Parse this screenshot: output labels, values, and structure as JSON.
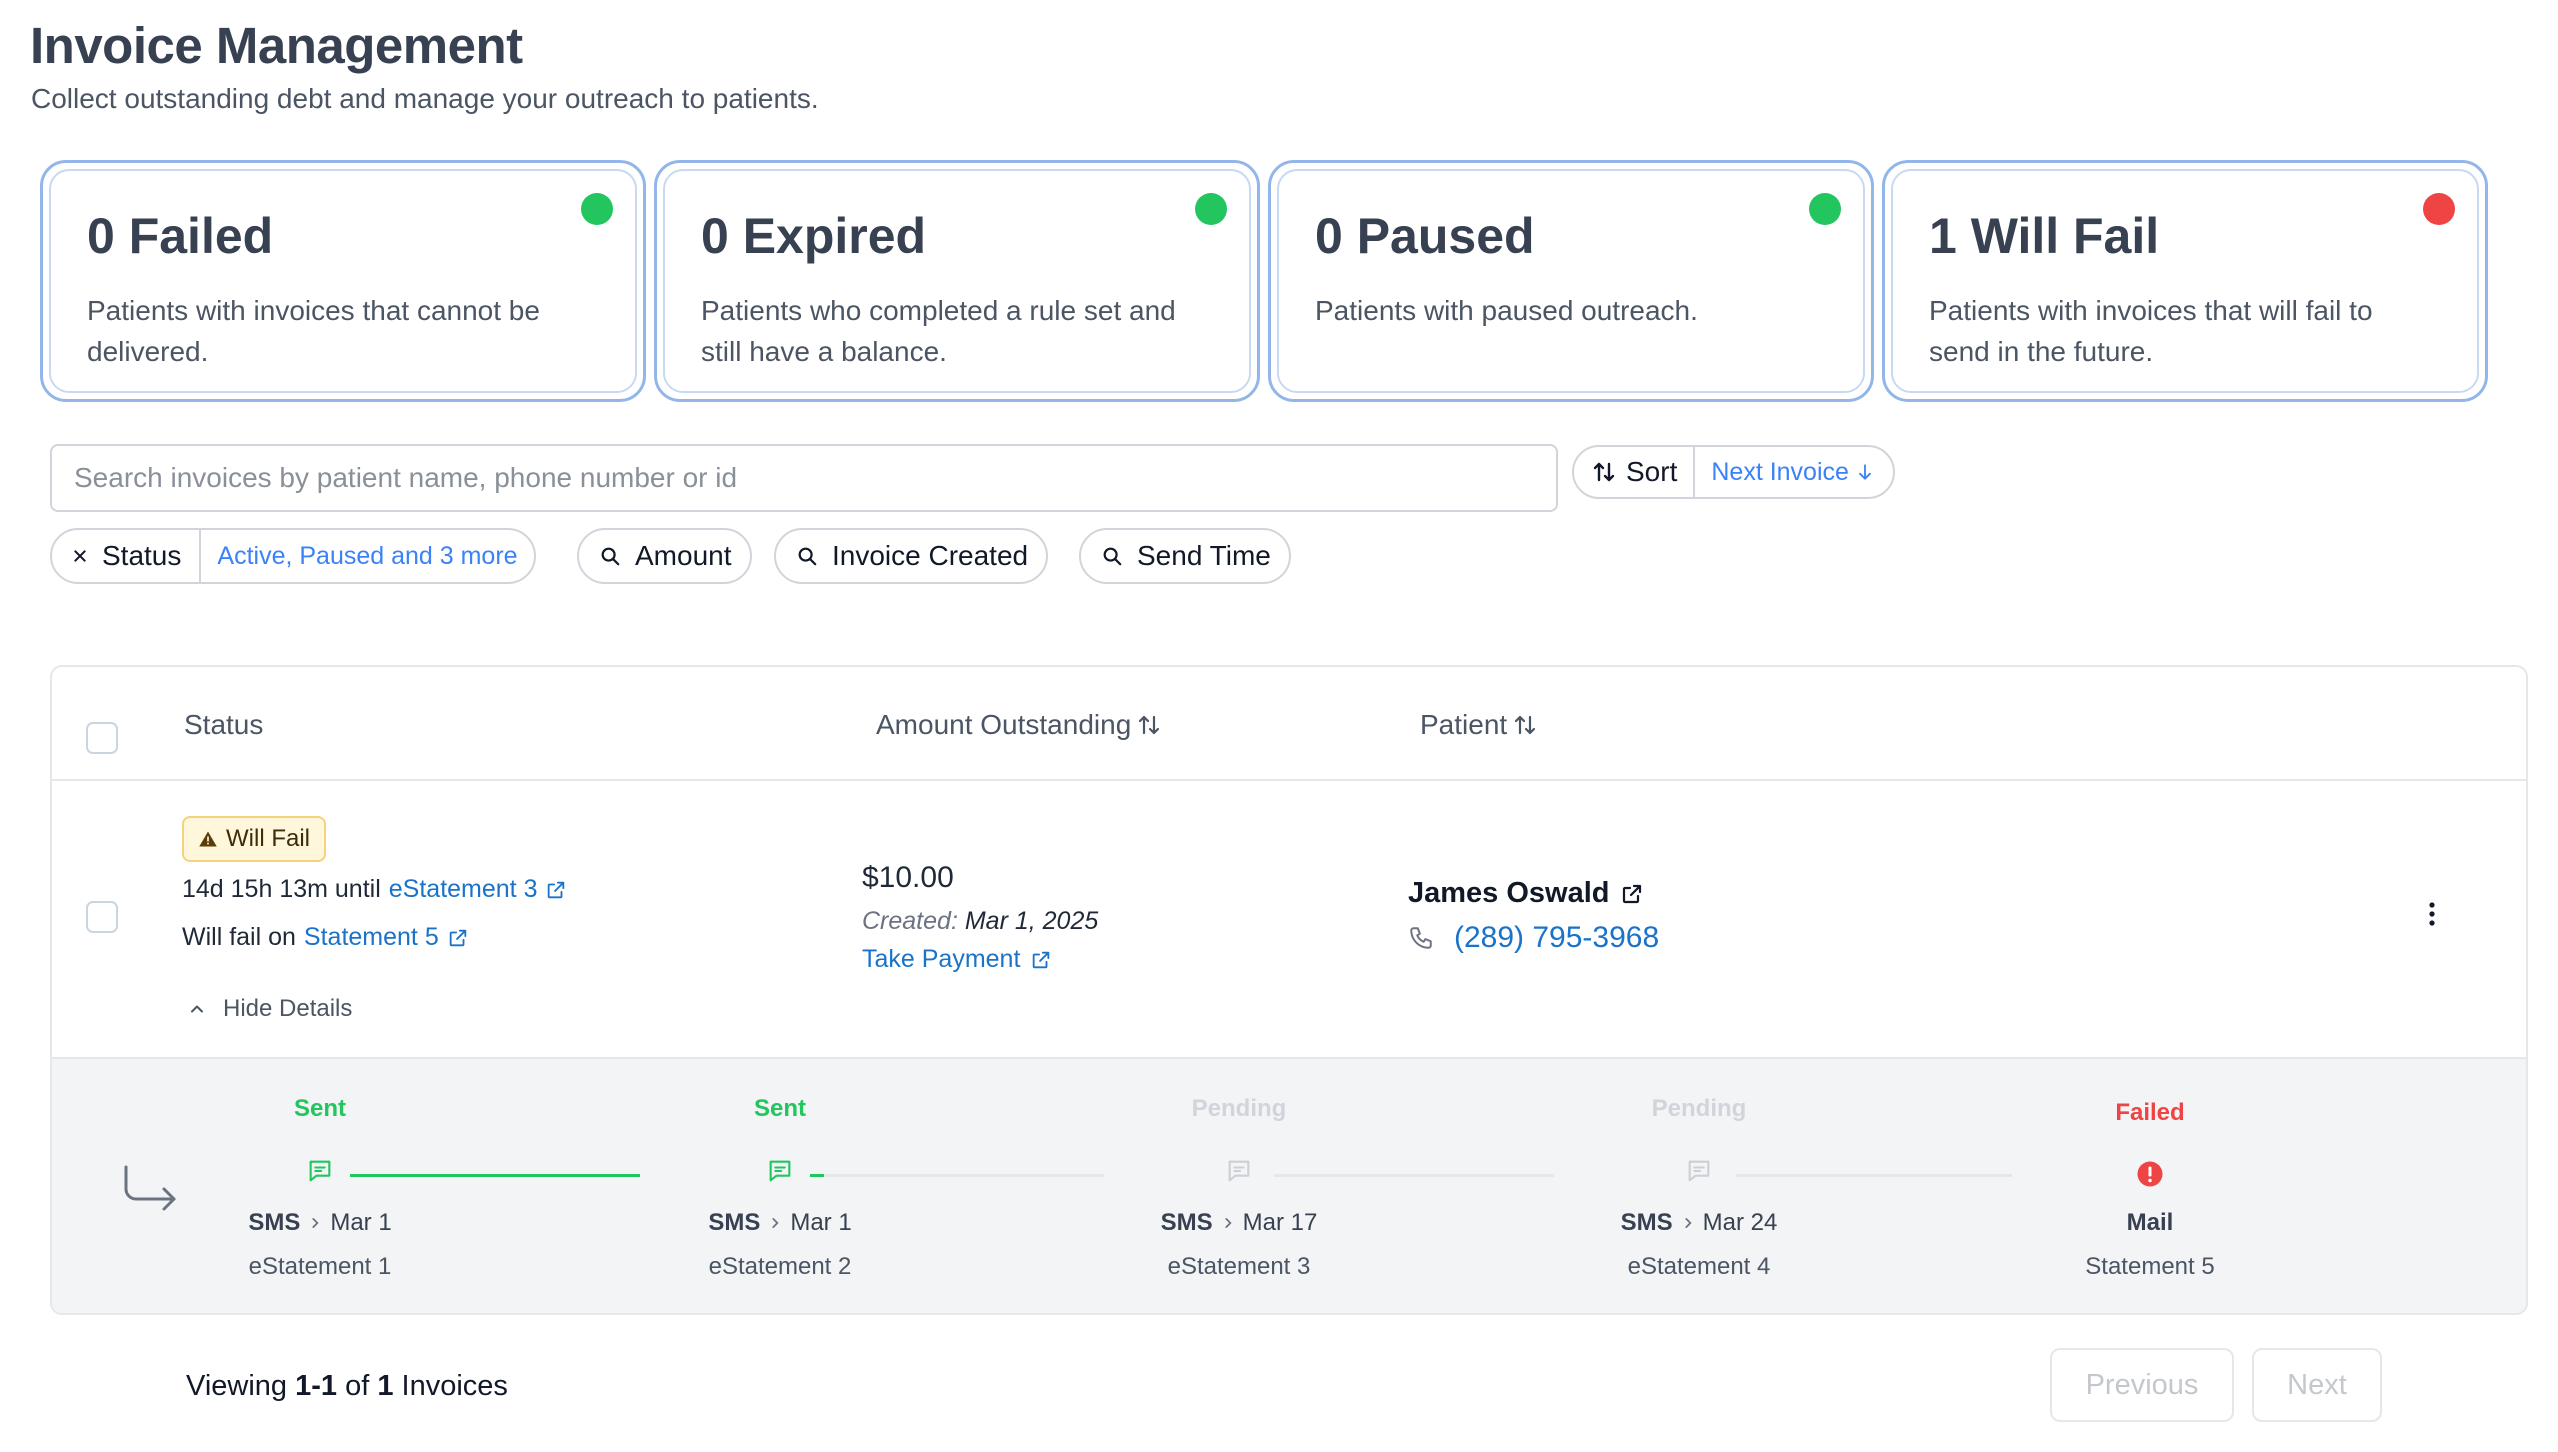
{
  "header": {
    "title": "Invoice Management",
    "subtitle": "Collect outstanding debt and manage your outreach to patients."
  },
  "stats": [
    {
      "title": "0 Failed",
      "description": "Patients with invoices that cannot be delivered.",
      "indicator_color": "#22c55e"
    },
    {
      "title": "0 Expired",
      "description": "Patients who completed a rule set and still have a balance.",
      "indicator_color": "#22c55e"
    },
    {
      "title": "0 Paused",
      "description": "Patients with paused outreach.",
      "indicator_color": "#22c55e"
    },
    {
      "title": "1 Will Fail",
      "description": "Patients with invoices that will fail to send in the future.",
      "indicator_color": "#ef4444"
    }
  ],
  "search": {
    "placeholder": "Search invoices by patient name, phone number or id",
    "value": ""
  },
  "sort": {
    "label": "Sort",
    "value": "Next Invoice",
    "direction_icon": "arrow-down-icon"
  },
  "filters": [
    {
      "label": "Status",
      "value": "Active, Paused and 3 more",
      "icon": "close-icon"
    },
    {
      "label": "Amount",
      "icon": "search-icon"
    },
    {
      "label": "Invoice Created",
      "icon": "search-icon"
    },
    {
      "label": "Send Time",
      "icon": "search-icon"
    }
  ],
  "table": {
    "columns": {
      "status": "Status",
      "amount": "Amount Outstanding",
      "patient": "Patient"
    },
    "rows": [
      {
        "badge": "Will Fail",
        "countdown_prefix": "14d 15h 13m until",
        "countdown_link": "eStatement 3",
        "fail_prefix": "Will fail on",
        "fail_link": "Statement 5",
        "details_toggle": "Hide Details",
        "amount": "$10.00",
        "created_label": "Created:",
        "created_date": "Mar 1, 2025",
        "take_payment": "Take Payment",
        "patient_name": "James Oswald",
        "patient_phone": "(289) 795-3968",
        "timeline": [
          {
            "status": "Sent",
            "status_color": "#22c55e",
            "channel": "SMS",
            "date": "Mar 1",
            "name": "eStatement 1",
            "icon": "message-icon"
          },
          {
            "status": "Sent",
            "status_color": "#22c55e",
            "channel": "SMS",
            "date": "Mar 1",
            "name": "eStatement 2",
            "icon": "message-icon"
          },
          {
            "status": "Pending",
            "status_color": "#d1d5db",
            "channel": "SMS",
            "date": "Mar 17",
            "name": "eStatement 3",
            "icon": "message-icon"
          },
          {
            "status": "Pending",
            "status_color": "#d1d5db",
            "channel": "SMS",
            "date": "Mar 24",
            "name": "eStatement 4",
            "icon": "message-icon"
          },
          {
            "status": "Failed",
            "status_color": "#ef4444",
            "channel": "Mail",
            "date": "",
            "name": "Statement 5",
            "icon": "error-icon"
          }
        ]
      }
    ]
  },
  "pagination": {
    "viewing_label": "Viewing",
    "range": "1-1",
    "of_label": "of",
    "total": "1",
    "unit_label": "Invoices",
    "previous": "Previous",
    "next": "Next"
  }
}
